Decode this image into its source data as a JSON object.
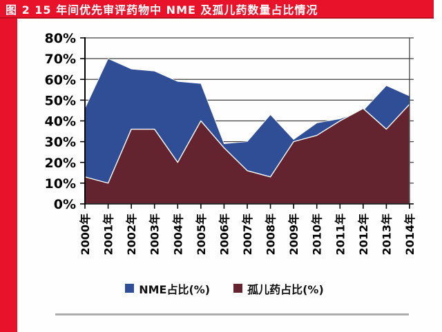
{
  "title_bar": {
    "text": "图 2  15 年间优先审评药物中 NME 及孤儿药数量占比情况",
    "bg_color": "#e8122b",
    "text_color": "#ffffff"
  },
  "accent": {
    "left_bar_color": "#e8122b"
  },
  "chart_data": {
    "type": "area",
    "title": "",
    "xlabel": "",
    "ylabel": "",
    "categories": [
      "2000年",
      "2001年",
      "2002年",
      "2003年",
      "2004年",
      "2005年",
      "2006年",
      "2007年",
      "2008年",
      "2009年",
      "2010年",
      "2011年",
      "2012年",
      "2013年",
      "2014年"
    ],
    "series": [
      {
        "name": "NME占比(%)",
        "color": "#2f4e96",
        "values": [
          46,
          70,
          65,
          64,
          59,
          58,
          29,
          30,
          43,
          31,
          39,
          41,
          45,
          57,
          52
        ]
      },
      {
        "name": "孤儿药占比(%)",
        "color": "#63242f",
        "values": [
          13,
          10,
          36,
          36,
          20,
          40,
          27,
          16,
          13,
          30,
          33,
          40,
          46,
          36,
          48
        ]
      }
    ],
    "ylim": [
      0,
      80
    ],
    "ytick_step": 10,
    "ytick_labels": [
      "0%",
      "10%",
      "20%",
      "30%",
      "40%",
      "50%",
      "60%",
      "70%",
      "80%"
    ],
    "grid": true,
    "gridline_color": "#3f3f3f",
    "axis_color": "#000000",
    "tick_label_color": "#000000",
    "legend_position": "bottom"
  }
}
